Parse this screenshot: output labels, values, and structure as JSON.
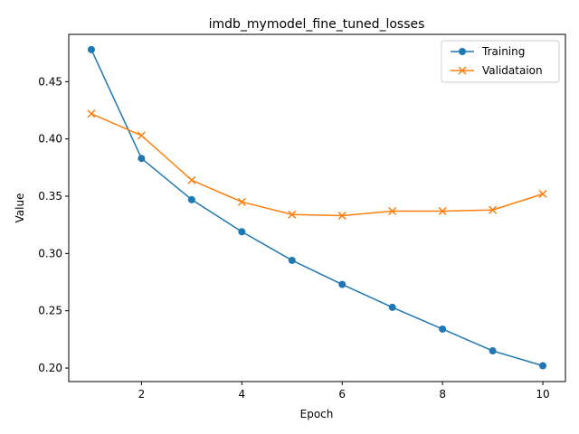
{
  "chart_data": {
    "type": "line",
    "title": "imdb_mymodel_fine_tuned_losses",
    "xlabel": "Epoch",
    "ylabel": "Value",
    "x": [
      1,
      2,
      3,
      4,
      5,
      6,
      7,
      8,
      9,
      10
    ],
    "xlim": [
      0.55,
      10.45
    ],
    "ylim": [
      0.1882,
      0.4913
    ],
    "xticks": [
      2,
      4,
      6,
      8,
      10
    ],
    "yticks": [
      0.2,
      0.25,
      0.3,
      0.35,
      0.4,
      0.45
    ],
    "xtick_labels": [
      "2",
      "4",
      "6",
      "8",
      "10"
    ],
    "ytick_labels": [
      "0.20",
      "0.25",
      "0.30",
      "0.35",
      "0.40",
      "0.45"
    ],
    "grid": false,
    "legend_position": "upper right",
    "series": [
      {
        "name": "Training",
        "marker": "circle",
        "color": "#1f77b4",
        "values": [
          0.478,
          0.383,
          0.347,
          0.319,
          0.294,
          0.273,
          0.253,
          0.234,
          0.215,
          0.202
        ]
      },
      {
        "name": "Validataion",
        "marker": "x",
        "color": "#ff7f0e",
        "values": [
          0.422,
          0.403,
          0.364,
          0.345,
          0.334,
          0.333,
          0.337,
          0.337,
          0.338,
          0.352
        ]
      }
    ]
  }
}
